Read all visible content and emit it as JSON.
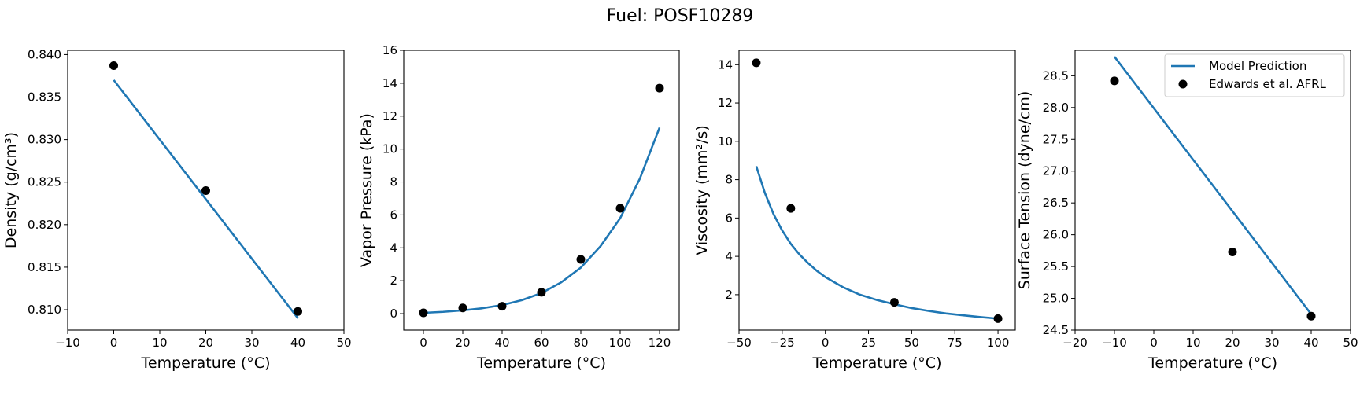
{
  "figure": {
    "suptitle": "Fuel: POSF10289"
  },
  "colors": {
    "model_line": "#1f77b4",
    "data_marker": "#000000"
  },
  "legend": {
    "location": "upper right of last panel",
    "entries": [
      "Model Prediction",
      "Edwards et al. AFRL"
    ]
  },
  "chart_data": [
    {
      "type": "line",
      "xlabel": "Temperature (°C)",
      "ylabel": "Density (g/cm³)",
      "xlim": [
        -10,
        50
      ],
      "ylim": [
        0.8076,
        0.8405
      ],
      "xticks": [
        -10,
        0,
        10,
        20,
        30,
        40,
        50
      ],
      "yticks": [
        0.81,
        0.815,
        0.82,
        0.825,
        0.83,
        0.835,
        0.84
      ],
      "ytick_decimals": 3,
      "series": [
        {
          "name": "Model Prediction",
          "kind": "line",
          "x": [
            0,
            40
          ],
          "y": [
            0.837,
            0.809
          ]
        },
        {
          "name": "Edwards et al. AFRL",
          "kind": "scatter",
          "x": [
            0,
            20,
            40
          ],
          "y": [
            0.8387,
            0.824,
            0.8098
          ]
        }
      ]
    },
    {
      "type": "line",
      "xlabel": "Temperature (°C)",
      "ylabel": "Vapor Pressure (kPa)",
      "xlim": [
        -10,
        130
      ],
      "ylim": [
        -1,
        16
      ],
      "xticks": [
        0,
        20,
        40,
        60,
        80,
        100,
        120
      ],
      "yticks": [
        0,
        2,
        4,
        6,
        8,
        10,
        12,
        14,
        16
      ],
      "ytick_decimals": 0,
      "series": [
        {
          "name": "Model Prediction",
          "kind": "line",
          "x": [
            0,
            10,
            20,
            30,
            40,
            50,
            60,
            70,
            80,
            90,
            100,
            110,
            120
          ],
          "y": [
            0.05,
            0.11,
            0.2,
            0.33,
            0.52,
            0.82,
            1.25,
            1.9,
            2.8,
            4.1,
            5.8,
            8.2,
            11.3
          ]
        },
        {
          "name": "Edwards et al. AFRL",
          "kind": "scatter",
          "x": [
            0,
            20,
            40,
            60,
            80,
            100,
            120
          ],
          "y": [
            0.05,
            0.35,
            0.45,
            1.3,
            3.3,
            6.4,
            13.7
          ]
        }
      ]
    },
    {
      "type": "line",
      "xlabel": "Temperature (°C)",
      "ylabel": "Viscosity (mm²/s)",
      "xlim": [
        -50,
        110
      ],
      "ylim": [
        0.15,
        14.75
      ],
      "xticks": [
        -50,
        -25,
        0,
        25,
        50,
        75,
        100
      ],
      "yticks": [
        2,
        4,
        6,
        8,
        10,
        12,
        14
      ],
      "ytick_decimals": 0,
      "series": [
        {
          "name": "Model Prediction",
          "kind": "line",
          "x": [
            -40,
            -35,
            -30,
            -25,
            -20,
            -15,
            -10,
            -5,
            0,
            10,
            20,
            30,
            40,
            50,
            60,
            70,
            80,
            90,
            100
          ],
          "y": [
            8.7,
            7.3,
            6.2,
            5.35,
            4.65,
            4.1,
            3.65,
            3.25,
            2.92,
            2.4,
            2.0,
            1.72,
            1.5,
            1.3,
            1.15,
            1.02,
            0.92,
            0.83,
            0.75
          ]
        },
        {
          "name": "Edwards et al. AFRL",
          "kind": "scatter",
          "x": [
            -40,
            -20,
            40,
            100
          ],
          "y": [
            14.1,
            6.5,
            1.6,
            0.75
          ]
        }
      ]
    },
    {
      "type": "line",
      "xlabel": "Temperature (°C)",
      "ylabel": "Surface Tension (dyne/cm)",
      "xlim": [
        -20,
        50
      ],
      "ylim": [
        24.5,
        28.9
      ],
      "xticks": [
        -20,
        -10,
        0,
        10,
        20,
        30,
        40,
        50
      ],
      "yticks": [
        24.5,
        25.0,
        25.5,
        26.0,
        26.5,
        27.0,
        27.5,
        28.0,
        28.5
      ],
      "ytick_decimals": 1,
      "series": [
        {
          "name": "Model Prediction",
          "kind": "line",
          "x": [
            -10,
            40
          ],
          "y": [
            28.8,
            24.75
          ]
        },
        {
          "name": "Edwards et al. AFRL",
          "kind": "scatter",
          "x": [
            -10,
            20,
            40
          ],
          "y": [
            28.42,
            25.73,
            24.72
          ]
        }
      ]
    }
  ]
}
